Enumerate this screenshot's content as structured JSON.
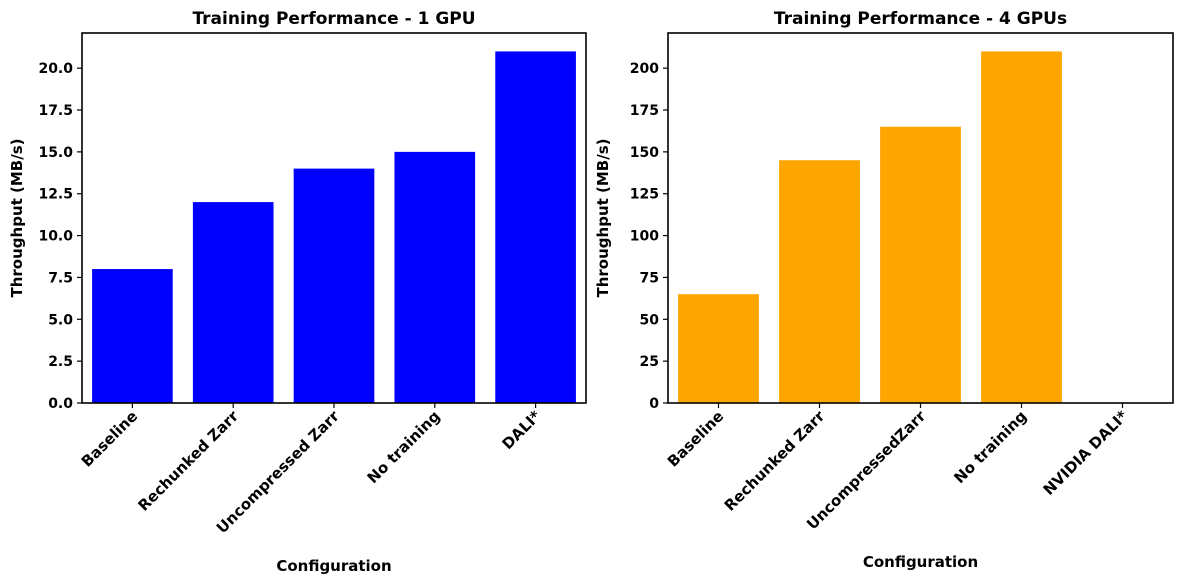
{
  "chart_data": [
    {
      "type": "bar",
      "title": "Training Performance - 1 GPU",
      "xlabel": "Configuration",
      "ylabel": "Throughput (MB/s)",
      "categories": [
        "Baseline",
        "Rechunked Zarr",
        "Uncompressed Zarr",
        "No training",
        "DALI*"
      ],
      "values": [
        8.0,
        12.0,
        14.0,
        15.0,
        21.0
      ],
      "ylim": [
        0,
        22.1
      ],
      "yticks": [
        "0.0",
        "2.5",
        "5.0",
        "7.5",
        "10.0",
        "12.5",
        "15.0",
        "17.5",
        "20.0"
      ],
      "bar_color": "#0000ff",
      "grid": false
    },
    {
      "type": "bar",
      "title": "Training Performance - 4 GPUs",
      "xlabel": "Configuration",
      "ylabel": "Throughput (MB/s)",
      "categories": [
        "Baseline",
        "Rechunked Zarr",
        "UncompressedZarr",
        "No training",
        "NVIDIA DALI*"
      ],
      "values": [
        65,
        145,
        165,
        210,
        0
      ],
      "ylim": [
        0,
        221
      ],
      "yticks": [
        "0",
        "25",
        "50",
        "75",
        "100",
        "125",
        "150",
        "175",
        "200"
      ],
      "bar_color": "#ffa500",
      "grid": false
    }
  ]
}
